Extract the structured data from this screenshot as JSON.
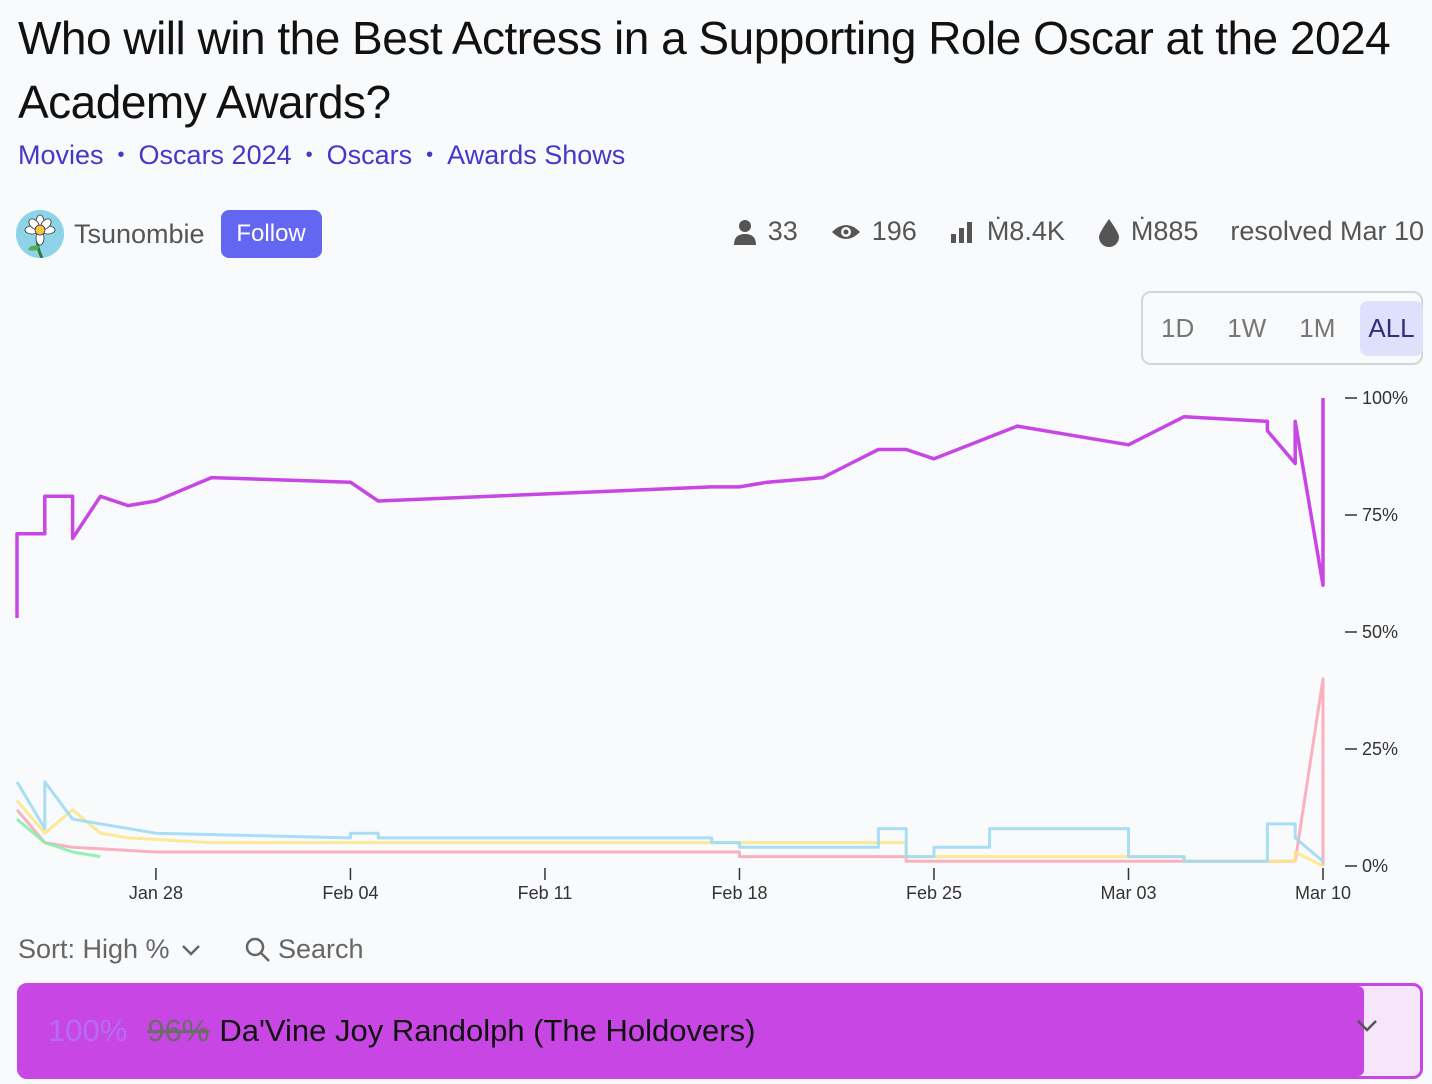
{
  "market": {
    "title": "Who will win the Best Actress in a Supporting Role Oscar at the 2024 Academy Awards?",
    "tags": [
      "Movies",
      "Oscars 2024",
      "Oscars",
      "Awards Shows"
    ]
  },
  "creator": {
    "name": "Tsunombie",
    "follow_label": "Follow"
  },
  "stats": {
    "traders": "33",
    "views": "196",
    "volume": "Ṁ8.4K",
    "liquidity": "Ṁ885",
    "resolved": "resolved Mar 10"
  },
  "periods": [
    {
      "label": "1D",
      "active": false
    },
    {
      "label": "1W",
      "active": false
    },
    {
      "label": "1M",
      "active": false
    },
    {
      "label": "ALL",
      "active": true
    }
  ],
  "controls": {
    "sort_label": "Sort: High %",
    "search_label": "Search"
  },
  "answer": {
    "prob": "100%",
    "prev_prob": "96%",
    "name": "Da'Vine Joy Randolph (The Holdovers)",
    "fill_fraction": 0.96,
    "color": "#c846e4"
  },
  "colors": {
    "accent": "#6366f1",
    "link": "#4338ca",
    "win": "#c846e4"
  },
  "chart_data": {
    "type": "line",
    "x_unit": "date (2024)",
    "xlim": [
      "2024-01-23",
      "2024-03-10"
    ],
    "ylim": [
      0,
      100
    ],
    "x_ticks": [
      "2024-01-28",
      "2024-02-04",
      "2024-02-11",
      "2024-02-18",
      "2024-02-25",
      "2024-03-03",
      "2024-03-10"
    ],
    "x_tick_labels": [
      "Jan 28",
      "Feb 04",
      "Feb 11",
      "Feb 18",
      "Feb 25",
      "Mar 03",
      "Mar 10"
    ],
    "y_ticks": [
      0,
      25,
      50,
      75,
      100
    ],
    "y_tick_labels": [
      "0%",
      "25%",
      "50%",
      "75%",
      "100%"
    ],
    "series": [
      {
        "color": "#c846e4",
        "x": [
          "2024-01-23",
          "2024-01-23",
          "2024-01-24",
          "2024-01-24",
          "2024-01-24",
          "2024-01-25",
          "2024-01-25",
          "2024-01-25",
          "2024-01-26",
          "2024-01-26",
          "2024-01-27",
          "2024-01-27",
          "2024-01-28",
          "2024-01-28",
          "2024-01-30",
          "2024-01-30",
          "2024-02-04",
          "2024-02-04",
          "2024-02-05",
          "2024-02-05",
          "2024-02-17",
          "2024-02-17",
          "2024-02-18",
          "2024-02-18",
          "2024-02-19",
          "2024-02-19",
          "2024-02-21",
          "2024-02-21",
          "2024-02-22",
          "2024-02-22",
          "2024-02-23",
          "2024-02-23",
          "2024-02-24",
          "2024-02-24",
          "2024-02-25",
          "2024-02-25",
          "2024-02-28",
          "2024-02-28",
          "2024-03-03",
          "2024-03-03",
          "2024-03-05",
          "2024-03-05",
          "2024-03-08",
          "2024-03-08",
          "2024-03-08",
          "2024-03-08",
          "2024-03-09",
          "2024-03-09",
          "2024-03-09",
          "2024-03-09",
          "2024-03-10",
          "2024-03-10",
          "2024-03-10",
          "2024-03-10"
        ],
        "y": [
          53,
          71,
          71,
          76,
          79,
          79,
          70,
          70,
          79,
          79,
          77,
          77,
          78,
          78,
          83,
          83,
          82,
          82,
          78,
          78,
          81,
          81,
          81,
          81,
          82,
          82,
          83,
          83,
          86,
          86,
          89,
          89,
          89,
          89,
          87,
          87,
          94,
          94,
          90,
          90,
          96,
          96,
          95,
          95,
          93,
          93,
          86,
          86,
          95,
          95,
          60,
          96,
          96,
          100
        ]
      },
      {
        "color": "#9fdaf4",
        "x": [
          "2024-01-23",
          "2024-01-24",
          "2024-01-24",
          "2024-01-25",
          "2024-01-25",
          "2024-01-26",
          "2024-01-26",
          "2024-01-28",
          "2024-01-28",
          "2024-02-04",
          "2024-02-04",
          "2024-02-05",
          "2024-02-05",
          "2024-02-17",
          "2024-02-17",
          "2024-02-18",
          "2024-02-18",
          "2024-02-19",
          "2024-02-19",
          "2024-02-23",
          "2024-02-23",
          "2024-02-24",
          "2024-02-24",
          "2024-02-25",
          "2024-02-25",
          "2024-02-27",
          "2024-02-27",
          "2024-03-03",
          "2024-03-03",
          "2024-03-05",
          "2024-03-05",
          "2024-03-08",
          "2024-03-08",
          "2024-03-09",
          "2024-03-09",
          "2024-03-10"
        ],
        "y": [
          18,
          8,
          18,
          10,
          10,
          9,
          9,
          7,
          7,
          6,
          7,
          7,
          6,
          6,
          5,
          5,
          4,
          4,
          4,
          4,
          8,
          8,
          2,
          2,
          4,
          4,
          8,
          8,
          2,
          2,
          1,
          1,
          9,
          9,
          6,
          1
        ]
      },
      {
        "color": "#fde68a",
        "x": [
          "2024-01-23",
          "2024-01-24",
          "2024-01-24",
          "2024-01-25",
          "2024-01-25",
          "2024-01-26",
          "2024-01-26",
          "2024-01-27",
          "2024-01-27",
          "2024-01-30",
          "2024-01-30",
          "2024-02-24",
          "2024-02-24",
          "2024-03-05",
          "2024-03-05",
          "2024-03-09",
          "2024-03-09",
          "2024-03-10"
        ],
        "y": [
          14,
          7,
          7,
          12,
          12,
          7,
          7,
          6,
          6,
          5,
          5,
          5,
          2,
          2,
          1,
          1,
          3,
          0
        ]
      },
      {
        "color": "#86efac",
        "x": [
          "2024-01-23",
          "2024-01-24",
          "2024-01-24",
          "2024-01-25",
          "2024-01-25",
          "2024-01-26"
        ],
        "y": [
          10,
          5,
          5,
          3,
          3,
          2
        ]
      },
      {
        "color": "#f9a8b8",
        "x": [
          "2024-01-23",
          "2024-01-24",
          "2024-01-24",
          "2024-01-25",
          "2024-01-25",
          "2024-01-28",
          "2024-01-28",
          "2024-02-04",
          "2024-02-04",
          "2024-02-05",
          "2024-02-05",
          "2024-02-18",
          "2024-02-18",
          "2024-02-24",
          "2024-02-24",
          "2024-03-09",
          "2024-03-09",
          "2024-03-10",
          "2024-03-10"
        ],
        "y": [
          12,
          5,
          5,
          4,
          4,
          3,
          3,
          3,
          3,
          3,
          3,
          3,
          2,
          2,
          1,
          1,
          1,
          40,
          0
        ]
      }
    ]
  }
}
